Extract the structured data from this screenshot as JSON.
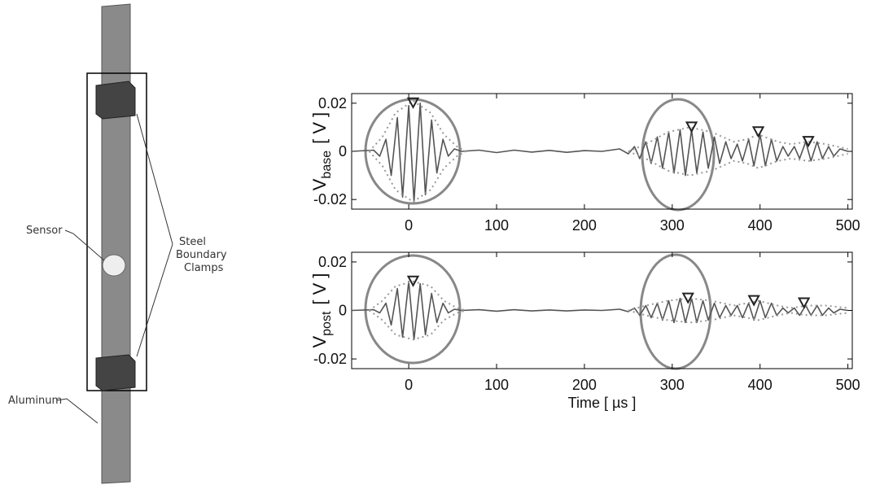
{
  "diagram": {
    "sensor": "Sensor",
    "clamps": [
      "Steel",
      "Boundary",
      "Clamps"
    ],
    "aluminum": "Aluminum"
  },
  "chart_data": [
    {
      "type": "line",
      "ylabel": "V",
      "ylabel_sub": "base",
      "ylabel_unit": "[ V ]",
      "xlim": [
        -65,
        505
      ],
      "ylim": [
        -0.024,
        0.024
      ],
      "xticks": [
        0,
        100,
        200,
        300,
        400,
        500
      ],
      "yticks": [
        -0.02,
        0,
        0.02
      ],
      "series": [
        {
          "color": "#555555",
          "style": "solid",
          "x": [
            -65,
            -40,
            -33,
            -26,
            -20,
            -13,
            -7,
            0,
            6,
            13,
            19,
            26,
            32,
            39,
            45,
            52,
            60,
            80,
            100,
            120,
            140,
            160,
            180,
            200,
            220,
            240,
            250,
            257,
            263,
            270,
            276,
            283,
            289,
            296,
            302,
            309,
            315,
            322,
            328,
            335,
            341,
            348,
            354,
            361,
            367,
            374,
            380,
            387,
            393,
            400,
            406,
            413,
            419,
            426,
            432,
            439,
            445,
            452,
            458,
            465,
            471,
            478,
            484,
            491,
            500
          ],
          "values": [
            0,
            0.0005,
            -0.002,
            0.005,
            -0.01,
            0.014,
            -0.019,
            0.019,
            -0.021,
            0.02,
            -0.018,
            0.013,
            -0.009,
            0.005,
            -0.002,
            0.001,
            0,
            0.0005,
            -0.0005,
            0.0005,
            -0.0003,
            0.0004,
            -0.0004,
            0.0003,
            0,
            0.001,
            -0.001,
            0.002,
            -0.003,
            0.004,
            -0.005,
            0.006,
            -0.007,
            0.008,
            -0.009,
            0.009,
            -0.01,
            0.009,
            -0.009,
            0.008,
            -0.007,
            0.006,
            -0.005,
            0.004,
            -0.003,
            0.003,
            -0.004,
            0.005,
            -0.006,
            0.007,
            -0.006,
            0.005,
            -0.004,
            0.002,
            -0.002,
            0.002,
            -0.003,
            0.004,
            -0.004,
            0.004,
            -0.003,
            0.002,
            -0.002,
            0.001,
            0
          ]
        },
        {
          "color": "#999999",
          "style": "dotted",
          "x": [
            -45,
            -30,
            -15,
            5,
            25,
            40,
            55,
            65,
            160,
            250,
            270,
            295,
            320,
            345,
            370,
            385,
            398,
            420,
            435,
            455,
            475,
            500
          ],
          "values": [
            0,
            0.006,
            0.016,
            0.021,
            0.016,
            0.007,
            0.002,
            0,
            null,
            0,
            0.003,
            0.008,
            0.01,
            0.008,
            0.004,
            0.005,
            0.007,
            0.004,
            0.003,
            0.004,
            0.003,
            0.001
          ]
        },
        {
          "color": "#999999",
          "style": "dotted",
          "x": [
            -45,
            -30,
            -15,
            5,
            25,
            40,
            55,
            65,
            160,
            250,
            270,
            295,
            320,
            345,
            370,
            385,
            398,
            420,
            435,
            455,
            475,
            500
          ],
          "values": [
            0,
            -0.006,
            -0.016,
            -0.021,
            -0.016,
            -0.007,
            -0.002,
            0,
            null,
            0,
            -0.003,
            -0.008,
            -0.01,
            -0.008,
            -0.004,
            -0.005,
            -0.007,
            -0.004,
            -0.003,
            -0.004,
            -0.003,
            -0.001
          ]
        },
        {
          "color": "#222222",
          "style": "triangle-down",
          "x": [
            5,
            322,
            398,
            455
          ],
          "values": [
            0.019,
            0.009,
            0.007,
            0.003
          ]
        }
      ]
    },
    {
      "type": "line",
      "ylabel": "V",
      "ylabel_sub": "post",
      "ylabel_unit": "[ V ]",
      "xlabel": "Time [ µs ]",
      "xlim": [
        -65,
        505
      ],
      "ylim": [
        -0.024,
        0.024
      ],
      "xticks": [
        0,
        100,
        200,
        300,
        400,
        500
      ],
      "yticks": [
        -0.02,
        0,
        0.02
      ],
      "series": [
        {
          "color": "#555555",
          "style": "solid",
          "x": [
            -65,
            -40,
            -33,
            -26,
            -20,
            -13,
            -7,
            0,
            6,
            13,
            19,
            26,
            32,
            39,
            45,
            52,
            60,
            80,
            100,
            120,
            140,
            160,
            180,
            200,
            220,
            240,
            250,
            257,
            263,
            270,
            276,
            283,
            289,
            296,
            302,
            309,
            315,
            322,
            328,
            335,
            341,
            348,
            354,
            361,
            367,
            374,
            380,
            387,
            393,
            400,
            406,
            413,
            419,
            426,
            432,
            439,
            445,
            452,
            458,
            465,
            471,
            478,
            484,
            491,
            500
          ],
          "values": [
            0,
            0.0003,
            -0.001,
            0.003,
            -0.006,
            0.009,
            -0.011,
            0.012,
            -0.012,
            0.011,
            -0.01,
            0.007,
            -0.005,
            0.003,
            -0.001,
            0.0005,
            0,
            0.0003,
            -0.0003,
            0.0003,
            -0.0002,
            0.0002,
            -0.0002,
            0.0002,
            0,
            0.0005,
            -0.0005,
            0.001,
            -0.002,
            0.002,
            -0.003,
            0.003,
            -0.004,
            0.004,
            -0.005,
            0.005,
            -0.005,
            0.005,
            -0.005,
            0.004,
            -0.004,
            0.003,
            -0.003,
            0.002,
            -0.002,
            0.002,
            -0.003,
            0.003,
            -0.004,
            0.004,
            -0.003,
            0.003,
            -0.002,
            0.001,
            -0.001,
            0.001,
            -0.002,
            0.002,
            -0.002,
            0.002,
            -0.002,
            0.001,
            -0.001,
            0.0005,
            0
          ]
        },
        {
          "color": "#999999",
          "style": "dotted",
          "x": [
            -45,
            -30,
            -15,
            5,
            25,
            40,
            55,
            65,
            160,
            250,
            270,
            295,
            320,
            345,
            370,
            385,
            398,
            420,
            435,
            455,
            475,
            500
          ],
          "values": [
            0,
            0.004,
            0.01,
            0.012,
            0.01,
            0.004,
            0.001,
            0,
            null,
            0,
            0.002,
            0.004,
            0.005,
            0.004,
            0.002,
            0.003,
            0.004,
            0.002,
            0.001,
            0.002,
            0.002,
            0.001
          ]
        },
        {
          "color": "#999999",
          "style": "dotted",
          "x": [
            -45,
            -30,
            -15,
            5,
            25,
            40,
            55,
            65,
            160,
            250,
            270,
            295,
            320,
            345,
            370,
            385,
            398,
            420,
            435,
            455,
            475,
            500
          ],
          "values": [
            0,
            -0.004,
            -0.01,
            -0.012,
            -0.01,
            -0.004,
            -0.001,
            0,
            null,
            0,
            -0.002,
            -0.004,
            -0.005,
            -0.004,
            -0.002,
            -0.003,
            -0.004,
            -0.002,
            -0.001,
            -0.002,
            -0.002,
            -0.001
          ]
        },
        {
          "color": "#222222",
          "style": "triangle-down",
          "x": [
            5,
            318,
            393,
            450
          ],
          "values": [
            0.011,
            0.004,
            0.003,
            0.002
          ]
        }
      ]
    }
  ]
}
